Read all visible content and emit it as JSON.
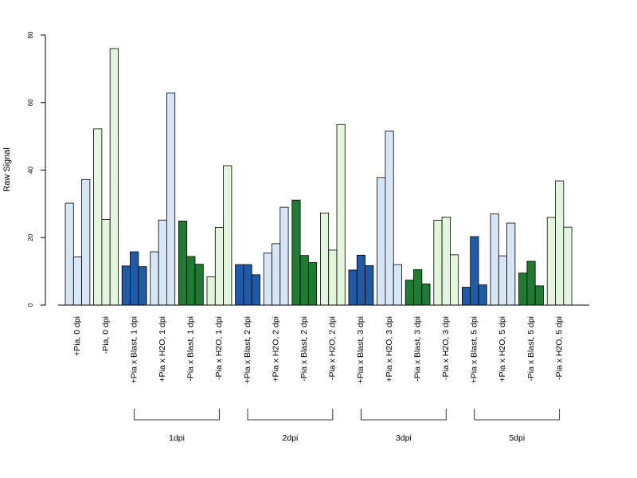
{
  "chart_data": {
    "type": "bar",
    "ylabel": "Raw Signal",
    "ylim": [
      0,
      80
    ],
    "yticks": [
      0,
      20,
      40,
      60,
      80
    ],
    "colors": {
      "light_blue": "#d7e6f5",
      "light_green": "#e3f5dc",
      "dark_blue": "#1f5aa6",
      "dark_green": "#1f7a32"
    },
    "categories": [
      {
        "label": "+Pia, 0 dpi",
        "color": "light_blue",
        "values": [
          30.2,
          14.3,
          37.2
        ]
      },
      {
        "label": "-Pia, 0 dpi",
        "color": "light_green",
        "values": [
          52.2,
          25.4,
          76.0
        ]
      },
      {
        "label": "+Pia x Blast, 1 dpi",
        "color": "dark_blue",
        "values": [
          11.6,
          15.8,
          11.4
        ]
      },
      {
        "label": "+Pia x H2O, 1 dpi",
        "color": "light_blue",
        "values": [
          15.8,
          25.2,
          62.8
        ]
      },
      {
        "label": "-Pia x Blast, 1 dpi",
        "color": "dark_green",
        "values": [
          24.9,
          14.4,
          12.1
        ]
      },
      {
        "label": "-Pia x H2O, 1 dpi",
        "color": "light_green",
        "values": [
          8.4,
          23.0,
          41.3
        ]
      },
      {
        "label": "+Pia x Blast, 2 dpi",
        "color": "dark_blue",
        "values": [
          12.0,
          12.0,
          9.0
        ]
      },
      {
        "label": "+Pia x H2O, 2 dpi",
        "color": "light_blue",
        "values": [
          15.4,
          18.2,
          29.0
        ]
      },
      {
        "label": "-Pia x Blast, 2 dpi",
        "color": "dark_green",
        "values": [
          31.1,
          14.7,
          12.6
        ]
      },
      {
        "label": "-Pia x H2O, 2 dpi",
        "color": "light_green",
        "values": [
          27.3,
          16.3,
          53.5
        ]
      },
      {
        "label": "+Pia x Blast, 3 dpi",
        "color": "dark_blue",
        "values": [
          10.4,
          14.8,
          11.7
        ]
      },
      {
        "label": "+Pia x H2O, 3 dpi",
        "color": "light_blue",
        "values": [
          37.8,
          51.6,
          12.0
        ]
      },
      {
        "label": "-Pia x Blast, 3 dpi",
        "color": "dark_green",
        "values": [
          7.4,
          10.5,
          6.3
        ]
      },
      {
        "label": "-Pia x H2O, 3 dpi",
        "color": "light_green",
        "values": [
          25.1,
          26.1,
          14.9
        ]
      },
      {
        "label": "+Pia x Blast, 5 dpi",
        "color": "dark_blue",
        "values": [
          5.3,
          20.3,
          6.0
        ]
      },
      {
        "label": "+Pia x H2O, 5 dpi",
        "color": "light_blue",
        "values": [
          27.0,
          14.6,
          24.3
        ]
      },
      {
        "label": "-Pia x Blast, 5 dpi",
        "color": "dark_green",
        "values": [
          9.5,
          13.0,
          5.7
        ]
      },
      {
        "label": "-Pia x H2O, 5 dpi",
        "color": "light_green",
        "values": [
          26.0,
          36.8,
          23.1
        ]
      }
    ],
    "groups": [
      {
        "label": "1dpi",
        "from": 2,
        "to": 5
      },
      {
        "label": "2dpi",
        "from": 6,
        "to": 9
      },
      {
        "label": "3dpi",
        "from": 10,
        "to": 13
      },
      {
        "label": "5dpi",
        "from": 14,
        "to": 17
      }
    ]
  }
}
